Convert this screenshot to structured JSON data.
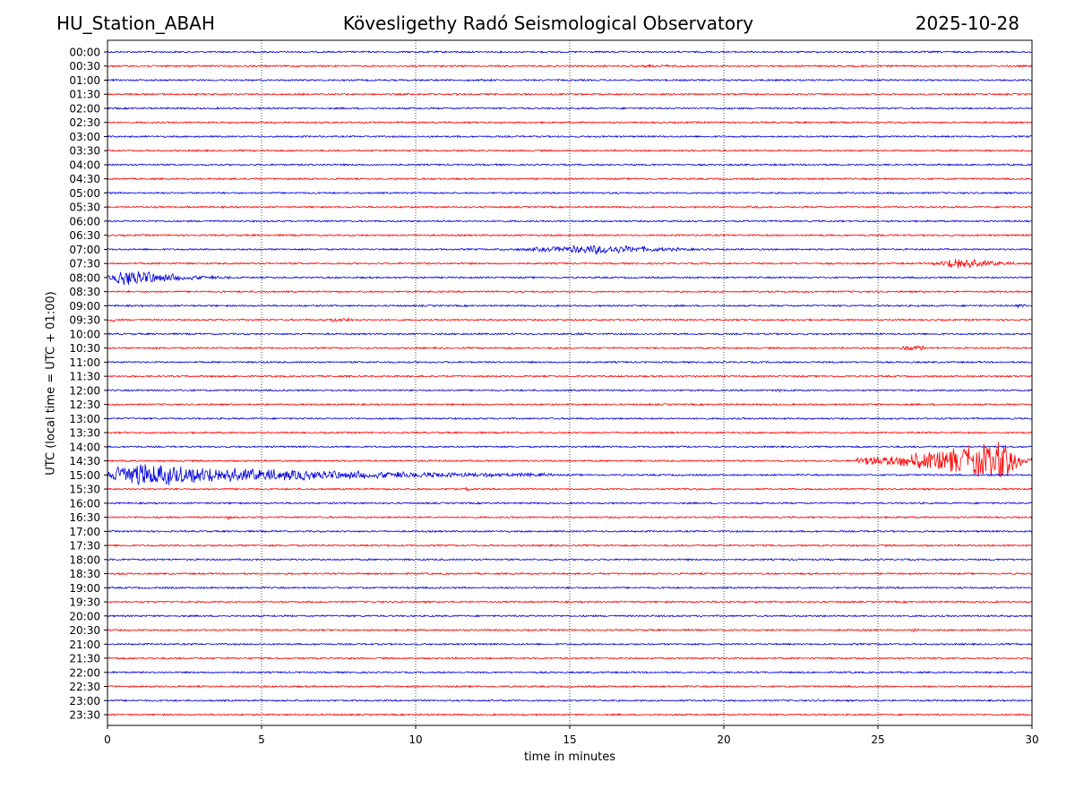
{
  "header": {
    "station": "HU_Station_ABAH",
    "observatory": "Kövesligethy Radó Seismological Observatory",
    "date": "2025-10-28"
  },
  "colors": {
    "trace_a": "#0000dd",
    "trace_b": "#ff0000"
  },
  "chart_data": {
    "type": "line",
    "title": "Kövesligethy Radó Seismological Observatory",
    "xlabel": "time in minutes",
    "ylabel": "UTC (local time = UTC + 01:00)",
    "xlim": [
      0,
      30
    ],
    "xticks": [
      0,
      5,
      10,
      15,
      20,
      25,
      30
    ],
    "vertical_gridlines_at": [
      5,
      10,
      15,
      20,
      25
    ],
    "rows": [
      "00:00",
      "00:30",
      "01:00",
      "01:30",
      "02:00",
      "02:30",
      "03:00",
      "03:30",
      "04:00",
      "04:30",
      "05:00",
      "05:30",
      "06:00",
      "06:30",
      "07:00",
      "07:30",
      "08:00",
      "08:30",
      "09:00",
      "09:30",
      "10:00",
      "10:30",
      "11:00",
      "11:30",
      "12:00",
      "12:30",
      "13:00",
      "13:30",
      "14:00",
      "14:30",
      "15:00",
      "15:30",
      "16:00",
      "16:30",
      "17:00",
      "17:30",
      "18:00",
      "18:30",
      "19:00",
      "19:30",
      "20:00",
      "20:30",
      "21:00",
      "21:30",
      "22:00",
      "22:30",
      "23:00",
      "23:30"
    ],
    "row_colors": "alternating trace_a (even rows) / trace_b (odd rows)",
    "base_amplitude": 0.9,
    "events": [
      {
        "row": "00:30",
        "start": 16.0,
        "end": 19.5,
        "amp": 1.6
      },
      {
        "row": "00:30",
        "start": 12.3,
        "end": 13.2,
        "amp": 1.4
      },
      {
        "row": "00:30",
        "start": 24.0,
        "end": 25.0,
        "amp": 1.4
      },
      {
        "row": "01:00",
        "start": 10.5,
        "end": 13.5,
        "amp": 1.3
      },
      {
        "row": "05:30",
        "start": 20.0,
        "end": 22.0,
        "amp": 1.4
      },
      {
        "row": "07:00",
        "start": 12.5,
        "end": 20.5,
        "amp": 6.5,
        "peak": 16.2
      },
      {
        "row": "07:30",
        "start": 26.8,
        "end": 30.0,
        "amp": 9.0,
        "peak": 27.6
      },
      {
        "row": "08:00",
        "start": 0.0,
        "end": 4.0,
        "amp": 12.0,
        "peak": 0.6
      },
      {
        "row": "09:00",
        "start": 29.2,
        "end": 30.0,
        "amp": 3.0
      },
      {
        "row": "09:30",
        "start": 7.0,
        "end": 8.2,
        "amp": 3.0
      },
      {
        "row": "09:30",
        "start": 0.0,
        "end": 0.3,
        "amp": 2.5
      },
      {
        "row": "10:00",
        "start": 14.5,
        "end": 15.8,
        "amp": 1.6
      },
      {
        "row": "10:30",
        "start": 25.5,
        "end": 26.8,
        "amp": 3.5
      },
      {
        "row": "12:00",
        "start": 21.0,
        "end": 22.5,
        "amp": 1.6
      },
      {
        "row": "14:30",
        "start": 24.3,
        "end": 30.0,
        "amp": 24.0,
        "peak": 29.2
      },
      {
        "row": "15:00",
        "start": 0.0,
        "end": 14.5,
        "amp": 16.0,
        "peak": 0.4
      },
      {
        "row": "15:30",
        "start": 11.5,
        "end": 11.9,
        "amp": 3.0
      },
      {
        "row": "15:30",
        "start": 18.5,
        "end": 19.2,
        "amp": 2.0
      },
      {
        "row": "16:30",
        "start": 3.8,
        "end": 4.1,
        "amp": 2.5
      },
      {
        "row": "20:30",
        "start": 26.0,
        "end": 26.4,
        "amp": 2.5
      }
    ]
  }
}
